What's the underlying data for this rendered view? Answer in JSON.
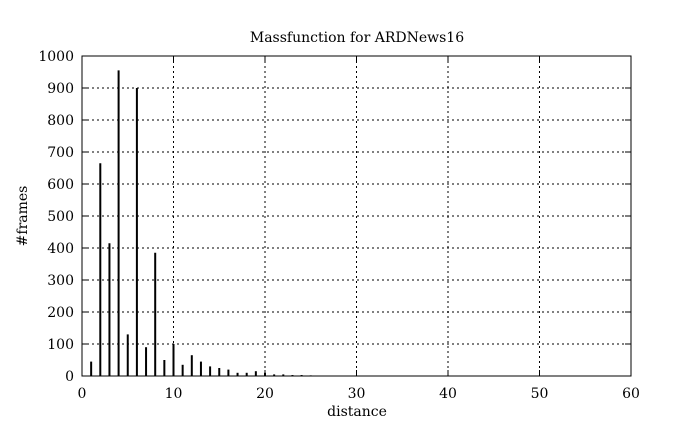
{
  "chart_data": {
    "type": "bar",
    "title": "Massfunction for ARDNews16",
    "xlabel": "distance",
    "ylabel": "#frames",
    "xlim": [
      0,
      60
    ],
    "ylim": [
      0,
      1000
    ],
    "x_ticks": [
      0,
      10,
      20,
      30,
      40,
      50,
      60
    ],
    "y_ticks": [
      0,
      100,
      200,
      300,
      400,
      500,
      600,
      700,
      800,
      900,
      1000
    ],
    "grid": true,
    "legend": "none",
    "series_color": "#000000",
    "x": [
      1,
      2,
      3,
      4,
      5,
      6,
      7,
      8,
      9,
      10,
      11,
      12,
      13,
      14,
      15,
      16,
      17,
      18,
      19,
      20,
      21,
      22,
      23,
      24,
      25
    ],
    "values": [
      45,
      665,
      415,
      955,
      130,
      900,
      90,
      385,
      50,
      100,
      35,
      65,
      45,
      30,
      25,
      20,
      10,
      10,
      15,
      10,
      5,
      5,
      3,
      3,
      2
    ]
  }
}
